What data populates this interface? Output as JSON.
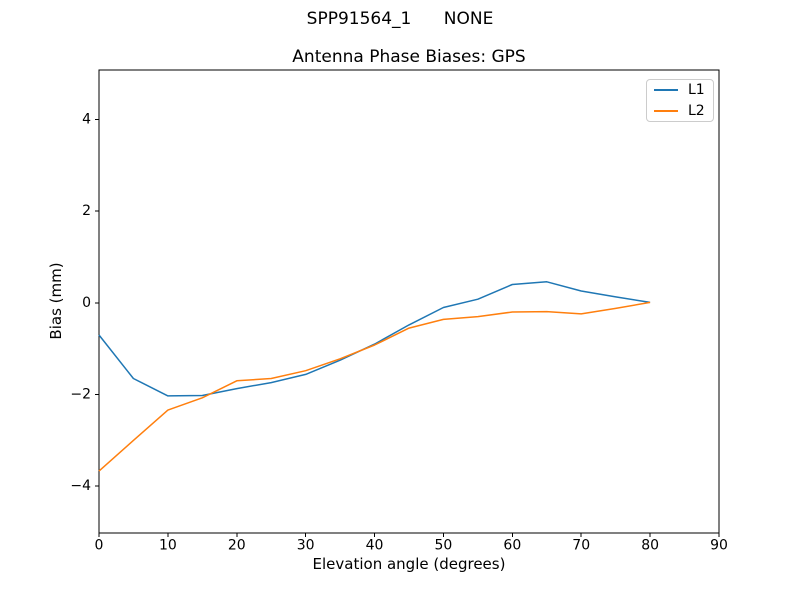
{
  "figure": {
    "suptitle": "SPP91564_1      NONE"
  },
  "colors": {
    "background": "#ffffff",
    "axis": "#000000",
    "tick_label": "#000000",
    "legend_border": "#cccccc",
    "l1": "#1f77b4",
    "l2": "#ff7f0e"
  },
  "legend": {
    "items": [
      {
        "label": "L1",
        "color": "#1f77b4"
      },
      {
        "label": "L2",
        "color": "#ff7f0e"
      }
    ]
  },
  "chart_data": {
    "type": "line",
    "title": "Antenna Phase Biases: GPS",
    "xlabel": "Elevation angle (degrees)",
    "ylabel": "Bias (mm)",
    "xlim": [
      0,
      90
    ],
    "ylim": [
      -5.02,
      5.08
    ],
    "x_ticks": [
      0,
      10,
      20,
      30,
      40,
      50,
      60,
      70,
      80,
      90
    ],
    "y_ticks": [
      4,
      2,
      0,
      -2,
      -4
    ],
    "grid": false,
    "legend_position": "upper right",
    "x": [
      0,
      5,
      10,
      15,
      20,
      25,
      30,
      35,
      40,
      45,
      50,
      55,
      60,
      65,
      70,
      75,
      80
    ],
    "series": [
      {
        "name": "L1",
        "color": "#1f77b4",
        "values": [
          -0.7,
          -1.65,
          -2.03,
          -2.02,
          -1.87,
          -1.74,
          -1.56,
          -1.25,
          -0.9,
          -0.48,
          -0.1,
          0.08,
          0.4,
          0.46,
          0.26,
          0.13,
          0.01
        ]
      },
      {
        "name": "L2",
        "color": "#ff7f0e",
        "values": [
          -3.67,
          -3.0,
          -2.34,
          -2.07,
          -1.7,
          -1.65,
          -1.48,
          -1.22,
          -0.92,
          -0.55,
          -0.36,
          -0.3,
          -0.2,
          -0.19,
          -0.24,
          -0.12,
          0.01
        ]
      }
    ]
  }
}
